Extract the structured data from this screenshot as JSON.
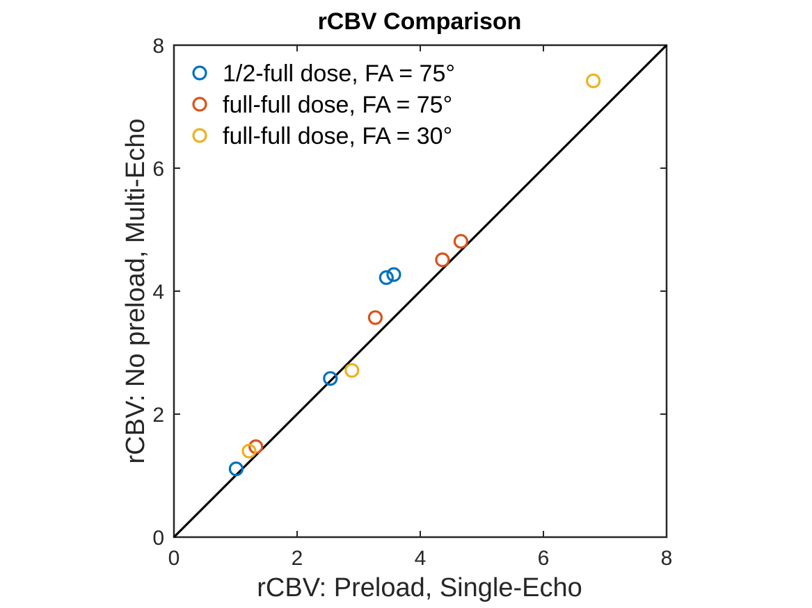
{
  "chart_data": {
    "type": "scatter",
    "title": "rCBV Comparison",
    "xlabel": "rCBV: Preload, Single-Echo",
    "ylabel": "rCBV: No preload, Multi-Echo",
    "xlim": [
      0,
      8
    ],
    "ylim": [
      0,
      8
    ],
    "xticks": [
      "0",
      "2",
      "4",
      "6",
      "8"
    ],
    "yticks": [
      "0",
      "2",
      "4",
      "6",
      "8"
    ],
    "grid": false,
    "legend_position": "top-left",
    "identity_line": true,
    "marker": "open-circle",
    "series": [
      {
        "name": "1/2-full dose, FA = 75°",
        "color": "#0072BD",
        "points": [
          {
            "x": 1.01,
            "y": 1.11
          },
          {
            "x": 2.54,
            "y": 2.58
          },
          {
            "x": 3.45,
            "y": 4.22
          },
          {
            "x": 3.57,
            "y": 4.27
          }
        ]
      },
      {
        "name": "full-full dose, FA = 75°",
        "color": "#D95319",
        "points": [
          {
            "x": 1.33,
            "y": 1.47
          },
          {
            "x": 3.27,
            "y": 3.57
          },
          {
            "x": 4.36,
            "y": 4.51
          },
          {
            "x": 4.66,
            "y": 4.81
          }
        ]
      },
      {
        "name": "full-full dose, FA = 30°",
        "color": "#EDB120",
        "points": [
          {
            "x": 1.22,
            "y": 1.4
          },
          {
            "x": 2.89,
            "y": 2.71
          },
          {
            "x": 6.81,
            "y": 7.42
          }
        ]
      }
    ]
  }
}
